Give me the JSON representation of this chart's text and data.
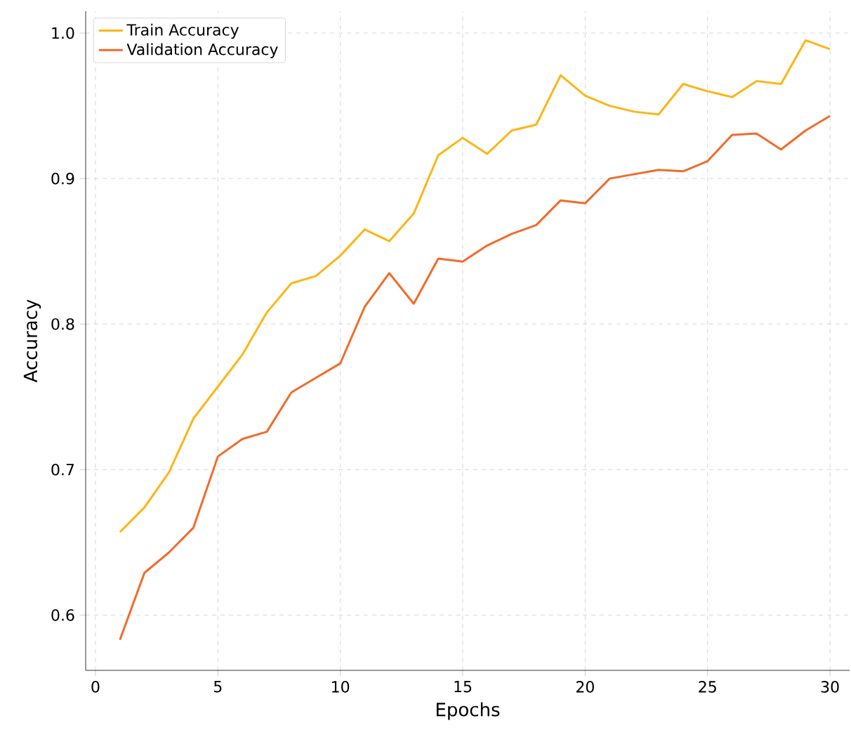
{
  "chart_data": {
    "type": "line",
    "xlabel": "Epochs",
    "ylabel": "Accuracy",
    "x": [
      1,
      2,
      3,
      4,
      5,
      6,
      7,
      8,
      9,
      10,
      11,
      12,
      13,
      14,
      15,
      16,
      17,
      18,
      19,
      20,
      21,
      22,
      23,
      24,
      25,
      26,
      27,
      28,
      29,
      30
    ],
    "series": [
      {
        "name": "Train Accuracy",
        "color": "#fdb515",
        "values": [
          0.657,
          0.674,
          0.698,
          0.735,
          0.757,
          0.779,
          0.808,
          0.828,
          0.833,
          0.847,
          0.865,
          0.857,
          0.876,
          0.916,
          0.928,
          0.917,
          0.933,
          0.937,
          0.971,
          0.957,
          0.95,
          0.946,
          0.944,
          0.965,
          0.96,
          0.956,
          0.967,
          0.965,
          0.995,
          0.989
        ]
      },
      {
        "name": "Validation Accuracy",
        "color": "#f26b2a",
        "values": [
          0.583,
          0.629,
          0.643,
          0.66,
          0.709,
          0.721,
          0.726,
          0.753,
          0.763,
          0.773,
          0.812,
          0.835,
          0.814,
          0.845,
          0.843,
          0.854,
          0.862,
          0.868,
          0.885,
          0.883,
          0.9,
          0.903,
          0.906,
          0.905,
          0.912,
          0.93,
          0.931,
          0.92,
          0.933,
          0.943
        ]
      }
    ],
    "xlim": [
      -0.4,
      30.8
    ],
    "ylim": [
      0.562,
      1.015
    ],
    "xticks": [
      0,
      5,
      10,
      15,
      20,
      25,
      30
    ],
    "yticks": [
      {
        "value": 0.6,
        "label": "0.6"
      },
      {
        "value": 0.7,
        "label": "0.7"
      },
      {
        "value": 0.8,
        "label": "0.8"
      },
      {
        "value": 0.9,
        "label": "0.9"
      },
      {
        "value": 1.0,
        "label": "1.0"
      }
    ],
    "grid": true,
    "legend": "top left",
    "marker": "none",
    "line_style": "solid"
  }
}
